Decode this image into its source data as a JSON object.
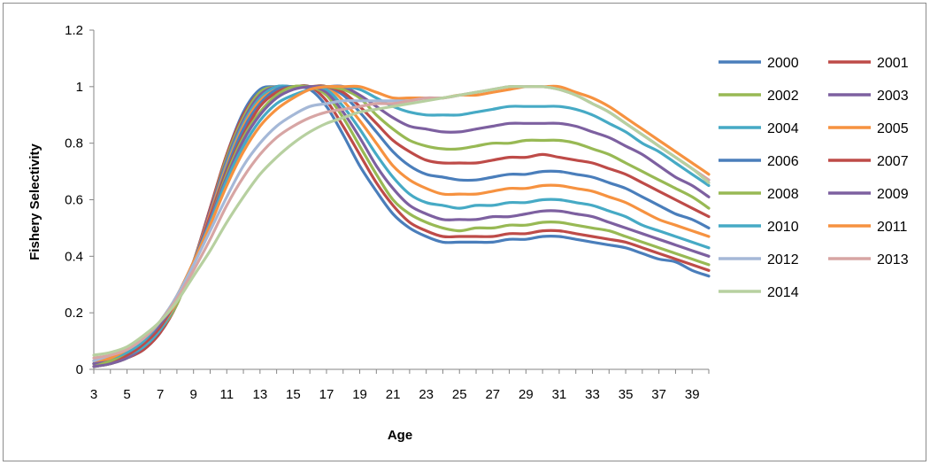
{
  "chart_data": {
    "type": "line",
    "title": "",
    "xlabel": "Age",
    "ylabel": "Fishery Selectivity",
    "xlim": [
      3,
      40
    ],
    "ylim": [
      0,
      1.2
    ],
    "y_ticks": [
      "0",
      "0.2",
      "0.4",
      "0.6",
      "0.8",
      "1",
      "1.2"
    ],
    "y_tick_values": [
      0,
      0.2,
      0.4,
      0.6,
      0.8,
      1.0,
      1.2
    ],
    "x_ticks": [
      3,
      5,
      7,
      9,
      11,
      13,
      15,
      17,
      19,
      21,
      23,
      25,
      27,
      29,
      31,
      33,
      35,
      37,
      39
    ],
    "grid": false,
    "legend_position": "right",
    "x": [
      3,
      4,
      5,
      6,
      7,
      8,
      9,
      10,
      11,
      12,
      13,
      14,
      15,
      16,
      17,
      18,
      19,
      20,
      21,
      22,
      23,
      24,
      25,
      26,
      27,
      28,
      29,
      30,
      31,
      32,
      33,
      34,
      35,
      36,
      37,
      38,
      39,
      40
    ],
    "series": [
      {
        "name": "2000",
        "color": "#4a7ebb",
        "values": [
          0.01,
          0.02,
          0.04,
          0.07,
          0.13,
          0.23,
          0.38,
          0.57,
          0.76,
          0.91,
          0.99,
          1.0,
          1.0,
          0.99,
          0.93,
          0.83,
          0.72,
          0.63,
          0.55,
          0.5,
          0.47,
          0.45,
          0.45,
          0.45,
          0.45,
          0.46,
          0.46,
          0.47,
          0.47,
          0.46,
          0.45,
          0.44,
          0.43,
          0.41,
          0.39,
          0.38,
          0.35,
          0.33
        ]
      },
      {
        "name": "2001",
        "color": "#be4b48",
        "values": [
          0.01,
          0.02,
          0.04,
          0.07,
          0.13,
          0.23,
          0.38,
          0.57,
          0.76,
          0.9,
          0.98,
          1.0,
          1.0,
          1.0,
          0.95,
          0.86,
          0.76,
          0.66,
          0.58,
          0.52,
          0.49,
          0.47,
          0.47,
          0.47,
          0.47,
          0.48,
          0.48,
          0.49,
          0.49,
          0.48,
          0.47,
          0.46,
          0.45,
          0.43,
          0.41,
          0.39,
          0.37,
          0.35
        ]
      },
      {
        "name": "2002",
        "color": "#98b954",
        "values": [
          0.01,
          0.02,
          0.04,
          0.08,
          0.14,
          0.23,
          0.38,
          0.56,
          0.75,
          0.89,
          0.98,
          1.0,
          1.0,
          1.0,
          0.97,
          0.89,
          0.79,
          0.69,
          0.6,
          0.55,
          0.52,
          0.5,
          0.49,
          0.5,
          0.5,
          0.51,
          0.51,
          0.52,
          0.52,
          0.51,
          0.5,
          0.49,
          0.47,
          0.45,
          0.43,
          0.41,
          0.39,
          0.37
        ]
      },
      {
        "name": "2003",
        "color": "#7d60a0",
        "values": [
          0.01,
          0.02,
          0.04,
          0.08,
          0.14,
          0.24,
          0.38,
          0.56,
          0.74,
          0.88,
          0.97,
          1.0,
          1.0,
          1.0,
          0.98,
          0.91,
          0.82,
          0.72,
          0.64,
          0.58,
          0.55,
          0.53,
          0.53,
          0.53,
          0.54,
          0.54,
          0.55,
          0.56,
          0.56,
          0.55,
          0.54,
          0.52,
          0.5,
          0.48,
          0.46,
          0.44,
          0.42,
          0.4
        ]
      },
      {
        "name": "2004",
        "color": "#46aac5",
        "values": [
          0.02,
          0.03,
          0.05,
          0.08,
          0.14,
          0.24,
          0.38,
          0.55,
          0.73,
          0.87,
          0.96,
          1.0,
          1.0,
          1.0,
          0.99,
          0.93,
          0.85,
          0.76,
          0.68,
          0.62,
          0.59,
          0.58,
          0.57,
          0.58,
          0.58,
          0.59,
          0.59,
          0.6,
          0.6,
          0.59,
          0.58,
          0.56,
          0.54,
          0.51,
          0.49,
          0.47,
          0.45,
          0.43
        ]
      },
      {
        "name": "2005",
        "color": "#f69240",
        "values": [
          0.02,
          0.03,
          0.05,
          0.09,
          0.15,
          0.24,
          0.38,
          0.55,
          0.72,
          0.86,
          0.95,
          0.99,
          1.0,
          1.0,
          1.0,
          0.95,
          0.88,
          0.8,
          0.72,
          0.67,
          0.64,
          0.62,
          0.62,
          0.62,
          0.63,
          0.64,
          0.64,
          0.65,
          0.65,
          0.64,
          0.63,
          0.61,
          0.59,
          0.56,
          0.53,
          0.51,
          0.49,
          0.47
        ]
      },
      {
        "name": "2006",
        "color": "#4a7ebb",
        "values": [
          0.02,
          0.03,
          0.05,
          0.09,
          0.15,
          0.25,
          0.38,
          0.54,
          0.71,
          0.85,
          0.94,
          0.99,
          1.0,
          1.0,
          1.0,
          0.97,
          0.91,
          0.84,
          0.77,
          0.72,
          0.69,
          0.68,
          0.67,
          0.67,
          0.68,
          0.69,
          0.69,
          0.7,
          0.7,
          0.69,
          0.68,
          0.66,
          0.64,
          0.61,
          0.58,
          0.55,
          0.53,
          0.5
        ]
      },
      {
        "name": "2007",
        "color": "#be4b48",
        "values": [
          0.02,
          0.03,
          0.05,
          0.09,
          0.15,
          0.25,
          0.38,
          0.54,
          0.7,
          0.83,
          0.93,
          0.98,
          1.0,
          1.0,
          1.0,
          0.98,
          0.93,
          0.87,
          0.81,
          0.77,
          0.74,
          0.73,
          0.73,
          0.73,
          0.74,
          0.75,
          0.75,
          0.76,
          0.75,
          0.74,
          0.73,
          0.71,
          0.69,
          0.66,
          0.63,
          0.6,
          0.57,
          0.54
        ]
      },
      {
        "name": "2008",
        "color": "#98b954",
        "values": [
          0.02,
          0.03,
          0.06,
          0.1,
          0.16,
          0.25,
          0.38,
          0.53,
          0.69,
          0.82,
          0.91,
          0.97,
          1.0,
          1.0,
          1.0,
          0.99,
          0.96,
          0.9,
          0.85,
          0.81,
          0.79,
          0.78,
          0.78,
          0.79,
          0.8,
          0.8,
          0.81,
          0.81,
          0.81,
          0.8,
          0.78,
          0.76,
          0.73,
          0.7,
          0.67,
          0.64,
          0.61,
          0.57
        ]
      },
      {
        "name": "2009",
        "color": "#7d60a0",
        "values": [
          0.02,
          0.04,
          0.06,
          0.1,
          0.16,
          0.25,
          0.38,
          0.53,
          0.68,
          0.81,
          0.9,
          0.96,
          0.99,
          1.0,
          1.0,
          1.0,
          0.97,
          0.93,
          0.89,
          0.86,
          0.85,
          0.84,
          0.84,
          0.85,
          0.86,
          0.87,
          0.87,
          0.87,
          0.87,
          0.86,
          0.84,
          0.82,
          0.79,
          0.76,
          0.72,
          0.68,
          0.65,
          0.61
        ]
      },
      {
        "name": "2010",
        "color": "#46aac5",
        "values": [
          0.03,
          0.04,
          0.06,
          0.1,
          0.17,
          0.26,
          0.38,
          0.52,
          0.67,
          0.79,
          0.88,
          0.94,
          0.97,
          0.99,
          1.0,
          1.0,
          0.99,
          0.96,
          0.93,
          0.91,
          0.9,
          0.9,
          0.9,
          0.91,
          0.92,
          0.93,
          0.93,
          0.93,
          0.93,
          0.92,
          0.9,
          0.87,
          0.84,
          0.8,
          0.77,
          0.73,
          0.69,
          0.65
        ]
      },
      {
        "name": "2011",
        "color": "#f69240",
        "values": [
          0.03,
          0.04,
          0.07,
          0.11,
          0.17,
          0.26,
          0.38,
          0.51,
          0.65,
          0.77,
          0.86,
          0.92,
          0.96,
          0.99,
          1.0,
          1.0,
          1.0,
          0.98,
          0.96,
          0.96,
          0.96,
          0.96,
          0.97,
          0.97,
          0.98,
          0.99,
          1.0,
          1.0,
          1.0,
          0.98,
          0.96,
          0.93,
          0.89,
          0.85,
          0.81,
          0.77,
          0.73,
          0.69
        ]
      },
      {
        "name": "2012",
        "color": "#a5b8d7",
        "values": [
          0.03,
          0.05,
          0.07,
          0.11,
          0.17,
          0.26,
          0.37,
          0.49,
          0.61,
          0.72,
          0.8,
          0.86,
          0.9,
          0.93,
          0.94,
          0.95,
          0.95,
          0.95,
          0.95,
          0.95,
          0.96,
          0.96,
          0.97,
          0.98,
          0.99,
          1.0,
          1.0,
          1.0,
          0.99,
          0.97,
          0.94,
          0.91,
          0.87,
          0.83,
          0.79,
          0.75,
          0.71,
          0.67
        ]
      },
      {
        "name": "2013",
        "color": "#d7a5a4",
        "values": [
          0.04,
          0.05,
          0.07,
          0.11,
          0.17,
          0.25,
          0.35,
          0.46,
          0.58,
          0.68,
          0.76,
          0.82,
          0.86,
          0.89,
          0.91,
          0.92,
          0.93,
          0.94,
          0.94,
          0.95,
          0.96,
          0.96,
          0.97,
          0.98,
          0.99,
          1.0,
          1.0,
          1.0,
          0.99,
          0.97,
          0.94,
          0.91,
          0.87,
          0.83,
          0.79,
          0.75,
          0.71,
          0.67
        ]
      },
      {
        "name": "2014",
        "color": "#b7d0a0",
        "values": [
          0.05,
          0.06,
          0.08,
          0.12,
          0.17,
          0.24,
          0.33,
          0.42,
          0.52,
          0.61,
          0.69,
          0.75,
          0.8,
          0.84,
          0.87,
          0.89,
          0.91,
          0.92,
          0.93,
          0.94,
          0.95,
          0.96,
          0.97,
          0.98,
          0.99,
          1.0,
          1.0,
          1.0,
          0.99,
          0.97,
          0.94,
          0.91,
          0.87,
          0.83,
          0.79,
          0.75,
          0.71,
          0.66
        ]
      }
    ]
  }
}
